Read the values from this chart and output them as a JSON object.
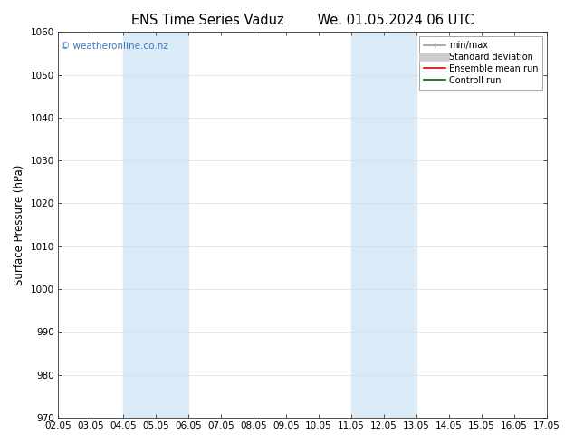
{
  "title_left": "ENS Time Series Vaduz",
  "title_right": "We. 01.05.2024 06 UTC",
  "ylabel": "Surface Pressure (hPa)",
  "ylim": [
    970,
    1060
  ],
  "yticks": [
    970,
    980,
    990,
    1000,
    1010,
    1020,
    1030,
    1040,
    1050,
    1060
  ],
  "xtick_labels": [
    "02.05",
    "03.05",
    "04.05",
    "05.05",
    "06.05",
    "07.05",
    "08.05",
    "09.05",
    "10.05",
    "11.05",
    "12.05",
    "13.05",
    "14.05",
    "15.05",
    "16.05",
    "17.05"
  ],
  "xtick_positions": [
    0,
    1,
    2,
    3,
    4,
    5,
    6,
    7,
    8,
    9,
    10,
    11,
    12,
    13,
    14,
    15
  ],
  "shaded_regions": [
    {
      "x_start": 2,
      "x_end": 4,
      "color": "#daeaf7"
    },
    {
      "x_start": 9,
      "x_end": 11,
      "color": "#daeaf7"
    }
  ],
  "watermark_text": "© weatheronline.co.nz",
  "watermark_color": "#4477bb",
  "legend_items": [
    {
      "label": "min/max",
      "color": "#999999",
      "lw": 1.2,
      "ls": "-",
      "type": "minmax"
    },
    {
      "label": "Standard deviation",
      "color": "#cccccc",
      "lw": 7,
      "ls": "-",
      "type": "band"
    },
    {
      "label": "Ensemble mean run",
      "color": "#dd0000",
      "lw": 1.2,
      "ls": "-",
      "type": "line"
    },
    {
      "label": "Controll run",
      "color": "#006600",
      "lw": 1.2,
      "ls": "-",
      "type": "line"
    }
  ],
  "bg_color": "#ffffff",
  "plot_bg_color": "#ffffff",
  "grid_color": "#dddddd",
  "tick_label_fontsize": 7.5,
  "axis_label_fontsize": 8.5,
  "title_fontsize": 10.5,
  "title_font": "DejaVu Sans",
  "label_font": "DejaVu Sans"
}
